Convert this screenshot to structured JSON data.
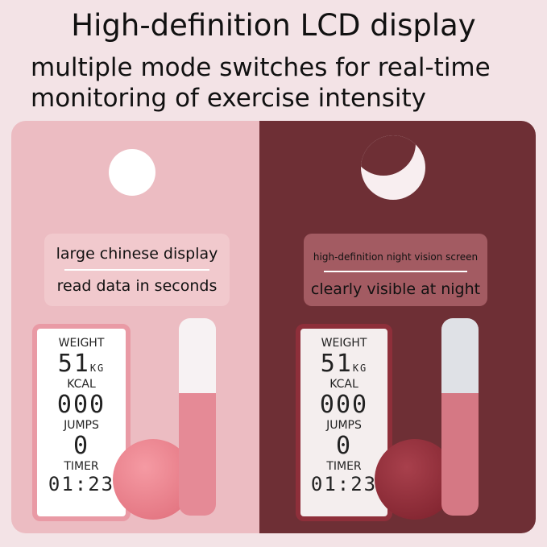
{
  "title": "High-definition LCD display",
  "subtitle_line1": "multiple mode switches for real-time",
  "subtitle_line2": "monitoring of exercise intensity",
  "day": {
    "icon": "sun-icon",
    "caption1": "large chinese display",
    "caption2": "read data in seconds"
  },
  "night": {
    "icon": "moon-icon",
    "caption1": "high-definition night vision screen",
    "caption2": "clearly visible at night"
  },
  "display": {
    "weight_label": "WEIGHT",
    "weight_value": "51",
    "weight_unit": "KG",
    "kcal_label": "KCAL",
    "kcal_value": "000",
    "jumps_label": "JUMPS",
    "jumps_value": "0",
    "timer_label": "TIMER",
    "timer_value": "01:23"
  },
  "colors": {
    "day_bg": "#ecbcc2",
    "night_bg": "#6e2f35"
  }
}
